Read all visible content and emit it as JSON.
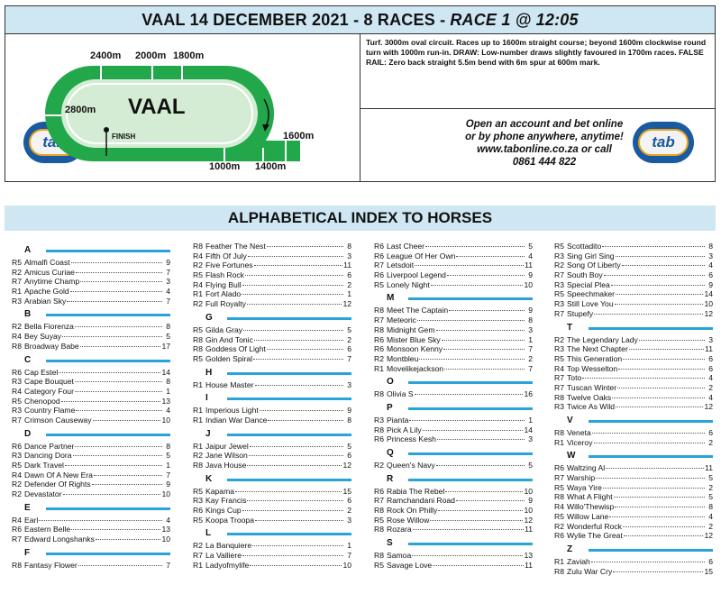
{
  "header": {
    "title": "VAAL 14 DECEMBER 2021 - 8 RACES -",
    "race": "RACE 1 @ 12:05"
  },
  "track": {
    "name": "VAAL",
    "finish_label": "FINISH",
    "distances": [
      "2400m",
      "2000m",
      "1800m",
      "2800m",
      "1600m",
      "1000m",
      "1400m"
    ],
    "track_color": "#22a84a",
    "infield_color": "#d4ecd4",
    "description": "Turf. 3000m oval circuit. Races up to 1600m straight course; beyond 1600m clockwise round turn with 1000m run-in. DRAW: Low-number draws slightly favoured in 1700m races. FALSE RAIL: Zero back straight 5.5m bend with 6m spur at 600m mark."
  },
  "advert": {
    "lines": [
      "Open an account and bet online",
      "or by phone anywhere, anytime!",
      "www.tabonline.co.za or call",
      "0861 444 822"
    ],
    "logo_text": "tab"
  },
  "index": {
    "title": "ALPHABETICAL INDEX TO HORSES",
    "accent": "#29a3d8",
    "columns": [
      [
        {
          "letter": "A",
          "entries": [
            {
              "race": "R5",
              "name": "Almalfi Coast",
              "num": "9"
            },
            {
              "race": "R2",
              "name": "Amicus Curiae",
              "num": "7"
            },
            {
              "race": "R7",
              "name": "Anytime Champ",
              "num": "3"
            },
            {
              "race": "R1",
              "name": "Apache Gold",
              "num": "4"
            },
            {
              "race": "R3",
              "name": "Arabian Sky",
              "num": "7"
            }
          ]
        },
        {
          "letter": "B",
          "entries": [
            {
              "race": "R2",
              "name": "Bella Fiorenza",
              "num": "8"
            },
            {
              "race": "R4",
              "name": "Bey Suyay",
              "num": "5"
            },
            {
              "race": "R8",
              "name": "Broadway Babe",
              "num": "17"
            }
          ]
        },
        {
          "letter": "C",
          "entries": [
            {
              "race": "R6",
              "name": "Cap Estel",
              "num": "14"
            },
            {
              "race": "R3",
              "name": "Cape Bouquet",
              "num": "8"
            },
            {
              "race": "R4",
              "name": "Category Four",
              "num": "1"
            },
            {
              "race": "R5",
              "name": "Chenopod",
              "num": "13"
            },
            {
              "race": "R3",
              "name": "Country Flame",
              "num": "4"
            },
            {
              "race": "R7",
              "name": "Crimson Causeway",
              "num": "10"
            }
          ]
        },
        {
          "letter": "D",
          "entries": [
            {
              "race": "R6",
              "name": "Dance Partner",
              "num": "8"
            },
            {
              "race": "R3",
              "name": "Dancing Dora",
              "num": "5"
            },
            {
              "race": "R5",
              "name": "Dark Travel",
              "num": "1"
            },
            {
              "race": "R4",
              "name": "Dawn Of A New Era",
              "num": "7"
            },
            {
              "race": "R2",
              "name": "Defender Of Rights",
              "num": "9"
            },
            {
              "race": "R2",
              "name": "Devastator",
              "num": "10"
            }
          ]
        },
        {
          "letter": "E",
          "entries": [
            {
              "race": "R4",
              "name": "Earl",
              "num": "4"
            },
            {
              "race": "R6",
              "name": "Eastern Belle",
              "num": "13"
            },
            {
              "race": "R7",
              "name": "Edward Longshanks",
              "num": "10"
            }
          ]
        },
        {
          "letter": "F",
          "entries": [
            {
              "race": "R8",
              "name": "Fantasy Flower",
              "num": "7"
            }
          ]
        }
      ],
      [
        {
          "letter": "",
          "entries": [
            {
              "race": "R8",
              "name": "Feather The Nest",
              "num": "8"
            },
            {
              "race": "R4",
              "name": "Fifth Of July",
              "num": "3"
            },
            {
              "race": "R2",
              "name": "Five Fortunes",
              "num": "11"
            },
            {
              "race": "R5",
              "name": "Flash Rock",
              "num": "6"
            },
            {
              "race": "R4",
              "name": "Flying Bull",
              "num": "2"
            },
            {
              "race": "R1",
              "name": "Fort Alado",
              "num": "1"
            },
            {
              "race": "R2",
              "name": "Full Royalty",
              "num": "12"
            }
          ]
        },
        {
          "letter": "G",
          "entries": [
            {
              "race": "R5",
              "name": "Gilda Gray",
              "num": "5"
            },
            {
              "race": "R8",
              "name": "Gin And Tonic",
              "num": "2"
            },
            {
              "race": "R8",
              "name": "Goddess Of Light",
              "num": "6"
            },
            {
              "race": "R5",
              "name": "Golden Spiral",
              "num": "7"
            }
          ]
        },
        {
          "letter": "H",
          "entries": [
            {
              "race": "R1",
              "name": "House Master",
              "num": "3"
            }
          ]
        },
        {
          "letter": "I",
          "entries": [
            {
              "race": "R1",
              "name": "Imperious Light",
              "num": "9"
            },
            {
              "race": "R1",
              "name": "Indian War Dance",
              "num": "8"
            }
          ]
        },
        {
          "letter": "J",
          "entries": [
            {
              "race": "R1",
              "name": "Jaipur Jewel",
              "num": "5"
            },
            {
              "race": "R2",
              "name": "Jane Wilson",
              "num": "6"
            },
            {
              "race": "R8",
              "name": "Java House",
              "num": "12"
            }
          ]
        },
        {
          "letter": "K",
          "entries": [
            {
              "race": "R5",
              "name": "Kapama",
              "num": "15"
            },
            {
              "race": "R3",
              "name": "Kay Francis",
              "num": "6"
            },
            {
              "race": "R6",
              "name": "Kings Cup",
              "num": "2"
            },
            {
              "race": "R5",
              "name": "Koopa Troopa",
              "num": "3"
            }
          ]
        },
        {
          "letter": "L",
          "entries": [
            {
              "race": "R2",
              "name": "La Banquiere",
              "num": "1"
            },
            {
              "race": "R7",
              "name": "La Valliere",
              "num": "7"
            },
            {
              "race": "R1",
              "name": "Ladyofmylife",
              "num": "10"
            }
          ]
        }
      ],
      [
        {
          "letter": "",
          "entries": [
            {
              "race": "R6",
              "name": "Last Cheer",
              "num": "5"
            },
            {
              "race": "R6",
              "name": "League Of Her Own",
              "num": "4"
            },
            {
              "race": "R7",
              "name": "Letsdoit",
              "num": "11"
            },
            {
              "race": "R6",
              "name": "Liverpool Legend",
              "num": "9"
            },
            {
              "race": "R5",
              "name": "Lonely Night",
              "num": "10"
            }
          ]
        },
        {
          "letter": "M",
          "entries": [
            {
              "race": "R8",
              "name": "Meet The Captain",
              "num": "9"
            },
            {
              "race": "R7",
              "name": "Meteoric",
              "num": "8"
            },
            {
              "race": "R8",
              "name": "Midnight Gem",
              "num": "3"
            },
            {
              "race": "R6",
              "name": "Mister Blue Sky",
              "num": "1"
            },
            {
              "race": "R6",
              "name": "Monsoon Kenny",
              "num": "7"
            },
            {
              "race": "R2",
              "name": "Montbleu",
              "num": "2"
            },
            {
              "race": "R1",
              "name": "Movelikejackson",
              "num": "7"
            }
          ]
        },
        {
          "letter": "O",
          "entries": [
            {
              "race": "R8",
              "name": "Olivia S",
              "num": "16"
            }
          ]
        },
        {
          "letter": "P",
          "entries": [
            {
              "race": "R3",
              "name": "Pianta",
              "num": "1"
            },
            {
              "race": "R8",
              "name": "Pick A Lily",
              "num": "14"
            },
            {
              "race": "R6",
              "name": "Princess Kesh",
              "num": "3"
            }
          ]
        },
        {
          "letter": "Q",
          "entries": [
            {
              "race": "R2",
              "name": "Queen's Navy",
              "num": "5"
            }
          ]
        },
        {
          "letter": "R",
          "entries": [
            {
              "race": "R6",
              "name": "Rabia The Rebel",
              "num": "10"
            },
            {
              "race": "R7",
              "name": "Ramchandani Road",
              "num": "9"
            },
            {
              "race": "R8",
              "name": "Rock On Philly",
              "num": "10"
            },
            {
              "race": "R5",
              "name": "Rose Willow",
              "num": "12"
            },
            {
              "race": "R8",
              "name": "Rozara",
              "num": "11"
            }
          ]
        },
        {
          "letter": "S",
          "entries": [
            {
              "race": "R8",
              "name": "Samoa",
              "num": "13"
            },
            {
              "race": "R5",
              "name": "Savage Love",
              "num": "11"
            }
          ]
        }
      ],
      [
        {
          "letter": "",
          "entries": [
            {
              "race": "R5",
              "name": "Scottadito",
              "num": "8"
            },
            {
              "race": "R3",
              "name": "Sing Girl Sing",
              "num": "3"
            },
            {
              "race": "R2",
              "name": "Song Of Liberty",
              "num": "4"
            },
            {
              "race": "R7",
              "name": "South Boy",
              "num": "6"
            },
            {
              "race": "R3",
              "name": "Special Plea",
              "num": "9"
            },
            {
              "race": "R5",
              "name": "Speechmaker",
              "num": "14"
            },
            {
              "race": "R3",
              "name": "Still Love You",
              "num": "10"
            },
            {
              "race": "R7",
              "name": "Stupefy",
              "num": "12"
            }
          ]
        },
        {
          "letter": "T",
          "entries": [
            {
              "race": "R2",
              "name": "The Legendary Lady",
              "num": "3"
            },
            {
              "race": "R3",
              "name": "The Next Chapter",
              "num": "11"
            },
            {
              "race": "R5",
              "name": "This Generation",
              "num": "6"
            },
            {
              "race": "R4",
              "name": "Top Wesselton",
              "num": "6"
            },
            {
              "race": "R7",
              "name": "Toto",
              "num": "4"
            },
            {
              "race": "R7",
              "name": "Tuscan Winter",
              "num": "2"
            },
            {
              "race": "R8",
              "name": "Twelve Oaks",
              "num": "4"
            },
            {
              "race": "R3",
              "name": "Twice As Wild",
              "num": "12"
            }
          ]
        },
        {
          "letter": "V",
          "entries": [
            {
              "race": "R8",
              "name": "Veneta",
              "num": "6"
            },
            {
              "race": "R1",
              "name": "Viceroy",
              "num": "2"
            }
          ]
        },
        {
          "letter": "W",
          "entries": [
            {
              "race": "R6",
              "name": "Waltzing Al",
              "num": "11"
            },
            {
              "race": "R7",
              "name": "Warship",
              "num": "5"
            },
            {
              "race": "R5",
              "name": "Waya Yire",
              "num": "2"
            },
            {
              "race": "R8",
              "name": "What A Flight",
              "num": "5"
            },
            {
              "race": "R4",
              "name": "Willo'Thewisp",
              "num": "8"
            },
            {
              "race": "R5",
              "name": "Willow Lane",
              "num": "4"
            },
            {
              "race": "R2",
              "name": "Wonderful Rock",
              "num": "2"
            },
            {
              "race": "R6",
              "name": "Wylie The Great",
              "num": "12"
            }
          ]
        },
        {
          "letter": "Z",
          "entries": [
            {
              "race": "R1",
              "name": "Zaviah",
              "num": "6"
            },
            {
              "race": "R8",
              "name": "Zulu War Cry",
              "num": "15"
            }
          ]
        }
      ]
    ]
  }
}
